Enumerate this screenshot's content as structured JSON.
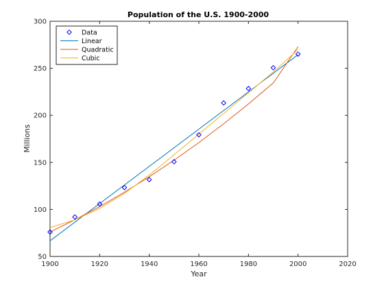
{
  "chart_data": {
    "type": "line",
    "title": "Population of the U.S. 1900-2000",
    "xlabel": "Year",
    "ylabel": "Millions",
    "xlim": [
      1900,
      2020
    ],
    "ylim": [
      50,
      300
    ],
    "xticks": [
      1900,
      1920,
      1940,
      1960,
      1980,
      2000,
      2020
    ],
    "yticks": [
      50,
      100,
      150,
      200,
      250,
      300
    ],
    "grid": false,
    "legend_position": "top-left",
    "series": [
      {
        "name": "Data",
        "kind": "markers",
        "marker": "diamond",
        "color": "#0000ff",
        "x": [
          1900,
          1910,
          1920,
          1930,
          1940,
          1950,
          1960,
          1970,
          1980,
          1990,
          2000
        ],
        "y": [
          75.995,
          91.972,
          105.711,
          123.203,
          131.669,
          150.697,
          179.323,
          213.212,
          228.505,
          250.633,
          265.0
        ]
      },
      {
        "name": "Linear",
        "kind": "line",
        "color": "#0072bd",
        "x": [
          1900,
          2000
        ],
        "y": [
          66.6,
          264.5
        ]
      },
      {
        "name": "Quadratic",
        "kind": "line",
        "color": "#d95319",
        "x": [
          1900,
          1910,
          1920,
          1930,
          1940,
          1950,
          1960,
          1970,
          1980,
          1990,
          2000
        ],
        "y": [
          76.0,
          89.0,
          103.0,
          118.3,
          134.7,
          152.3,
          171.0,
          191.0,
          212.1,
          234.4,
          273.0
        ]
      },
      {
        "name": "Cubic",
        "kind": "line",
        "color": "#edb120",
        "x": [
          1900,
          1910,
          1920,
          1930,
          1940,
          1950,
          1960,
          1970,
          1980,
          1990,
          2000
        ],
        "y": [
          80.7,
          88.9,
          101.0,
          117.0,
          136.5,
          158.0,
          180.0,
          202.0,
          224.0,
          246.0,
          270.0
        ]
      }
    ]
  }
}
